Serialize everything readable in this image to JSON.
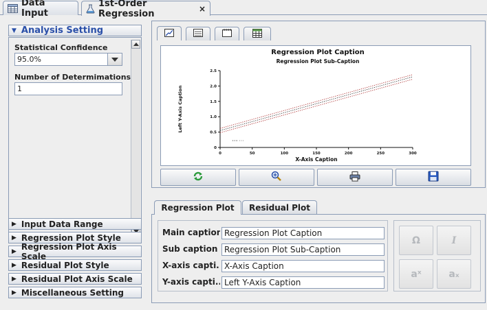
{
  "doc_tabs": [
    {
      "label": "Data Input"
    },
    {
      "label": "1st-Order Regression",
      "close": "×"
    }
  ],
  "left_panel": {
    "analysis_header": "Analysis Setting",
    "confidence_label": "Statistical Confidence",
    "confidence_value": "95.0%",
    "determinations_label": "Number of Determimations",
    "determinations_value": "1",
    "sections": [
      "Input Data Range",
      "Regression Plot Style",
      "Regression Plot Axis Scale",
      "Residual Plot Style",
      "Residual Plot Axis Scale",
      "Miscellaneous Setting"
    ]
  },
  "plot_tabs": [
    "line-chart-icon",
    "grid-chart-icon",
    "notepad-icon",
    "spreadsheet-icon"
  ],
  "toolbar": [
    "refresh-icon",
    "zoom-icon",
    "print-icon",
    "save-icon"
  ],
  "chart_data": {
    "type": "line",
    "title": "Regression Plot Caption",
    "subtitle": "Regression Plot Sub-Caption",
    "xlabel": "X-Axis Caption",
    "ylabel": "Left Y-Axis Caption",
    "xlim": [
      0,
      300
    ],
    "ylim": [
      0,
      2.5
    ],
    "x_ticks": [
      "0",
      "50",
      "100",
      "150",
      "200",
      "250",
      "300"
    ],
    "y_ticks": [
      "0",
      "0.5",
      "1.0",
      "1.5",
      "2.0",
      "2.5"
    ],
    "series": [
      {
        "style": "dotted",
        "x": [
          0,
          300
        ],
        "y": [
          0.48,
          2.22
        ],
        "color": "#b03a3a"
      },
      {
        "style": "dotted",
        "x": [
          0,
          300
        ],
        "y": [
          0.55,
          2.3
        ],
        "color": "#3a3a3a"
      },
      {
        "style": "dotted",
        "x": [
          0,
          300
        ],
        "y": [
          0.62,
          2.37
        ],
        "color": "#b03a3a"
      }
    ],
    "legend": "bottom-left"
  },
  "caption_tabs": [
    "Regression Plot",
    "Residual Plot"
  ],
  "captions": [
    {
      "label": "Main caption",
      "value": "Regression Plot Caption"
    },
    {
      "label": "Sub caption",
      "value": "Regression Plot Sub-Caption"
    },
    {
      "label": "X-axis capti...",
      "value": "X-Axis Caption"
    },
    {
      "label": "Y-axis capti...",
      "value": "Left Y-Axis Caption"
    }
  ],
  "symbols": [
    "Ω",
    "I",
    "aˣ",
    "aₓ"
  ]
}
